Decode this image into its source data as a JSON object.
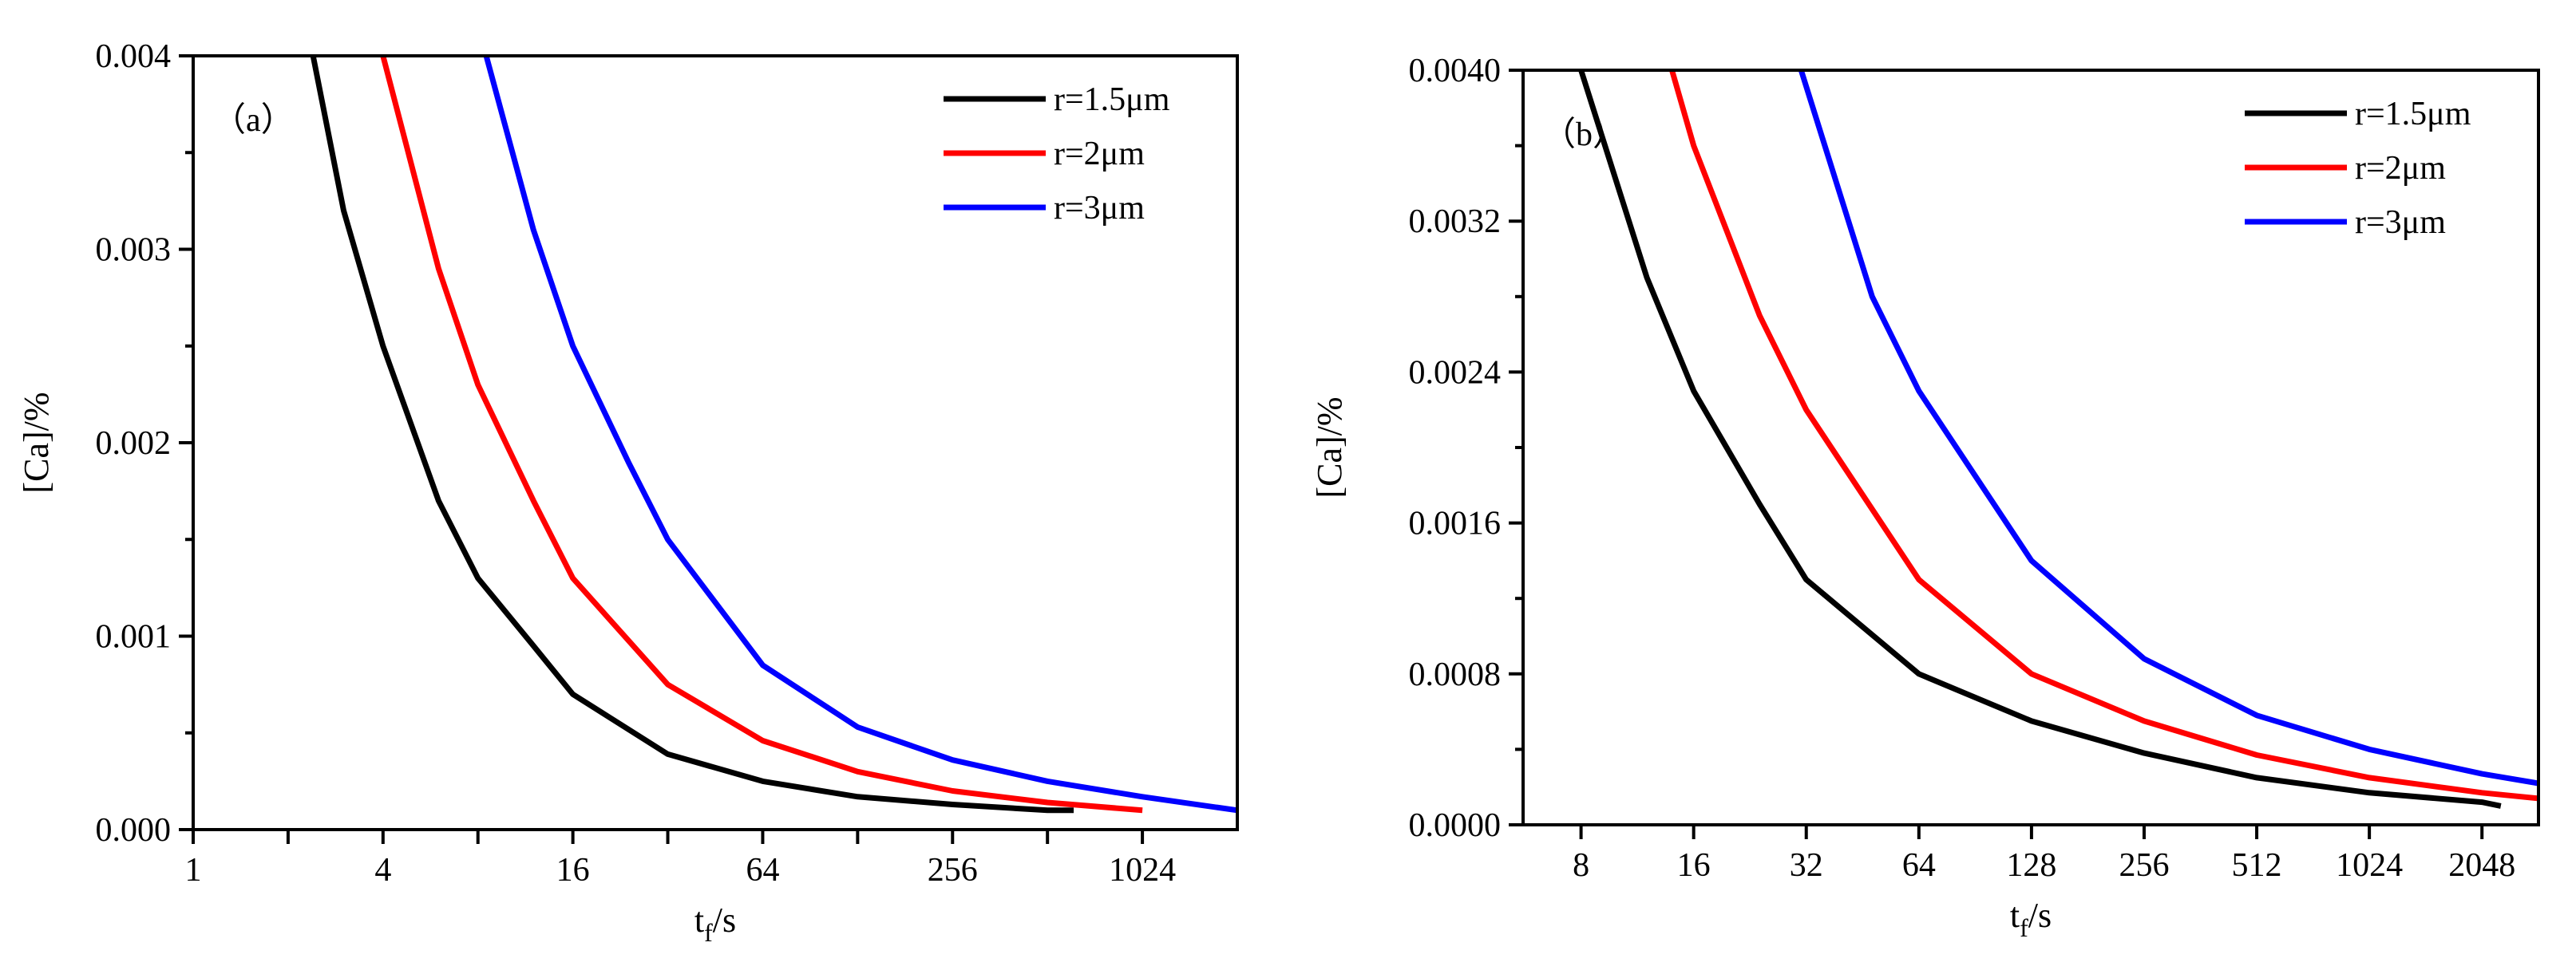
{
  "chart_data": [
    {
      "type": "line",
      "panel_label": "（a）",
      "xlabel": "tf/s",
      "xlabel_main": "t",
      "xlabel_sub": "f",
      "xlabel_tail": "/s",
      "ylabel": "[Ca]/%",
      "x_scale": "log2",
      "xlim": [
        1,
        2048
      ],
      "ylim": [
        0,
        0.004
      ],
      "x_ticks": [
        1,
        4,
        16,
        64,
        256,
        1024
      ],
      "x_tick_labels": [
        "1",
        "4",
        "16",
        "64",
        "256",
        "1024"
      ],
      "y_ticks": [
        0,
        0.001,
        0.002,
        0.003,
        0.004
      ],
      "y_tick_labels": [
        "0.000",
        "0.001",
        "0.002",
        "0.003",
        "0.004"
      ],
      "legend_position": "top-right",
      "series": [
        {
          "name": "r=1.5μm",
          "color": "#000000",
          "points": [
            [
              2.4,
              0.004
            ],
            [
              3,
              0.0032
            ],
            [
              4,
              0.0025
            ],
            [
              6,
              0.0017
            ],
            [
              8,
              0.0013
            ],
            [
              12,
              0.00095
            ],
            [
              16,
              0.0007
            ],
            [
              32,
              0.00039
            ],
            [
              64,
              0.00025
            ],
            [
              128,
              0.00017
            ],
            [
              256,
              0.00013
            ],
            [
              512,
              0.0001
            ],
            [
              620,
              0.0001
            ]
          ]
        },
        {
          "name": "r=2μm",
          "color": "#ff0000",
          "points": [
            [
              4,
              0.004
            ],
            [
              6,
              0.0029
            ],
            [
              8,
              0.0023
            ],
            [
              12,
              0.0017
            ],
            [
              16,
              0.0013
            ],
            [
              32,
              0.00075
            ],
            [
              64,
              0.00046
            ],
            [
              128,
              0.0003
            ],
            [
              256,
              0.0002
            ],
            [
              512,
              0.00014
            ],
            [
              1024,
              0.0001
            ]
          ]
        },
        {
          "name": "r=3μm",
          "color": "#0000ff",
          "points": [
            [
              8.5,
              0.004
            ],
            [
              12,
              0.0031
            ],
            [
              16,
              0.0025
            ],
            [
              24,
              0.0019
            ],
            [
              32,
              0.0015
            ],
            [
              64,
              0.00085
            ],
            [
              128,
              0.00053
            ],
            [
              256,
              0.00036
            ],
            [
              512,
              0.00025
            ],
            [
              1024,
              0.00017
            ],
            [
              2048,
              0.0001
            ]
          ]
        }
      ]
    },
    {
      "type": "line",
      "panel_label": "（b）",
      "xlabel": "tf/s",
      "xlabel_main": "t",
      "xlabel_sub": "f",
      "xlabel_tail": "/s",
      "ylabel": "[Ca]/%",
      "x_scale": "log2",
      "xlim": [
        5.6,
        2900
      ],
      "ylim": [
        0,
        0.004
      ],
      "x_ticks": [
        8,
        16,
        32,
        64,
        128,
        256,
        512,
        1024,
        2048
      ],
      "x_tick_labels": [
        "8",
        "16",
        "32",
        "64",
        "128",
        "256",
        "512",
        "1024",
        "2048"
      ],
      "y_ticks": [
        0,
        0.0008,
        0.0016,
        0.0024,
        0.0032,
        0.004
      ],
      "y_tick_labels": [
        "0.0000",
        "0.0008",
        "0.0016",
        "0.0024",
        "0.0032",
        "0.0040"
      ],
      "legend_position": "top-right",
      "series": [
        {
          "name": "r=1.5μm",
          "color": "#000000",
          "points": [
            [
              8,
              0.004
            ],
            [
              12,
              0.0029
            ],
            [
              16,
              0.0023
            ],
            [
              24,
              0.0017
            ],
            [
              32,
              0.0013
            ],
            [
              64,
              0.0008
            ],
            [
              128,
              0.00055
            ],
            [
              256,
              0.00038
            ],
            [
              512,
              0.00025
            ],
            [
              1024,
              0.00017
            ],
            [
              2048,
              0.00012
            ],
            [
              2300,
              0.0001
            ]
          ]
        },
        {
          "name": "r=2μm",
          "color": "#ff0000",
          "points": [
            [
              14,
              0.004
            ],
            [
              16,
              0.0036
            ],
            [
              24,
              0.0027
            ],
            [
              32,
              0.0022
            ],
            [
              64,
              0.0013
            ],
            [
              128,
              0.0008
            ],
            [
              256,
              0.00055
            ],
            [
              512,
              0.00037
            ],
            [
              1024,
              0.00025
            ],
            [
              2048,
              0.00017
            ],
            [
              2900,
              0.00014
            ]
          ]
        },
        {
          "name": "r=3μm",
          "color": "#0000ff",
          "points": [
            [
              31,
              0.004
            ],
            [
              48,
              0.0028
            ],
            [
              64,
              0.0023
            ],
            [
              128,
              0.0014
            ],
            [
              256,
              0.00088
            ],
            [
              512,
              0.00058
            ],
            [
              1024,
              0.0004
            ],
            [
              2048,
              0.00027
            ],
            [
              2900,
              0.00022
            ]
          ]
        }
      ]
    }
  ]
}
